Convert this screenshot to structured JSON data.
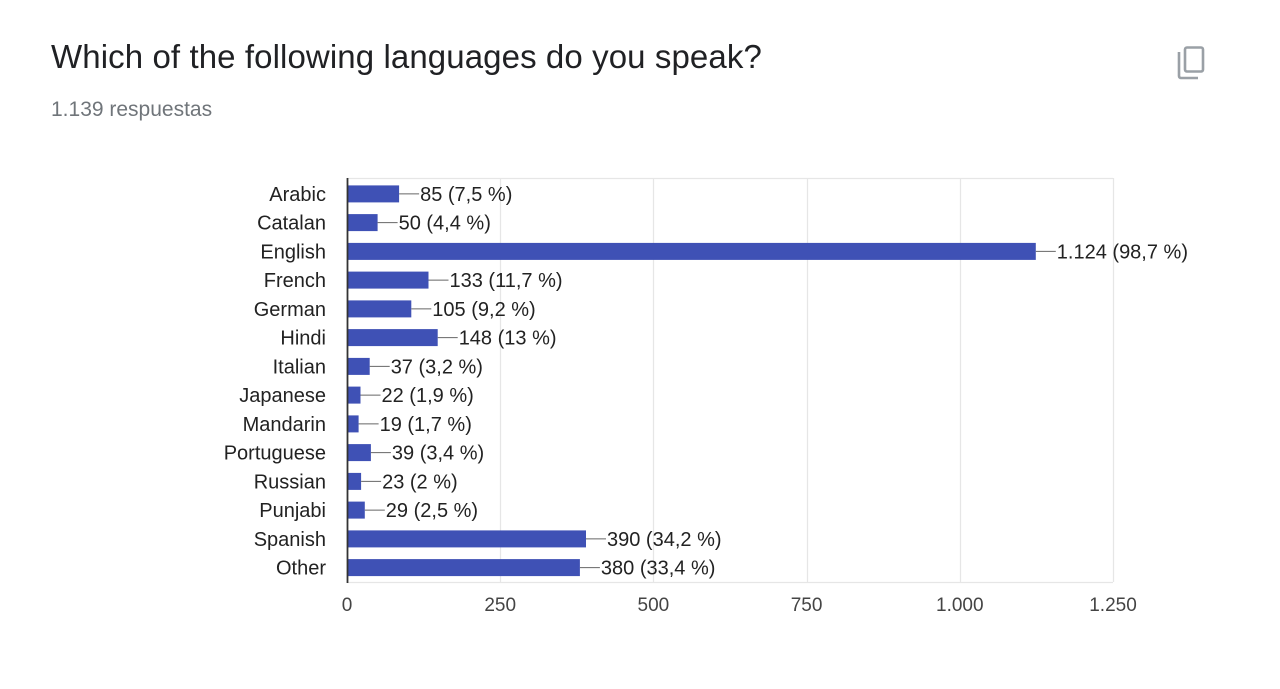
{
  "question": {
    "title": "Which of the following languages do you speak?",
    "response_count": "1.139 respuestas",
    "copy_icon": "copy-icon"
  },
  "colors": {
    "bar": "#3f51b5",
    "grid": "#e6e6e6",
    "axis": "#333333",
    "label": "#222222",
    "tick": "#444444"
  },
  "chart_data": {
    "type": "bar",
    "orientation": "horizontal",
    "categories": [
      "Arabic",
      "Catalan",
      "English",
      "French",
      "German",
      "Hindi",
      "Italian",
      "Japanese",
      "Mandarin",
      "Portuguese",
      "Russian",
      "Punjabi",
      "Spanish",
      "Other"
    ],
    "values": [
      85,
      50,
      1124,
      133,
      105,
      148,
      37,
      22,
      19,
      39,
      23,
      29,
      390,
      380
    ],
    "data_labels": [
      "85 (7,5 %)",
      "50 (4,4 %)",
      "1.124 (98,7 %)",
      "133 (11,7 %)",
      "105 (9,2 %)",
      "148 (13 %)",
      "37 (3,2 %)",
      "22 (1,9 %)",
      "19 (1,7 %)",
      "39 (3,4 %)",
      "23 (2 %)",
      "29 (2,5 %)",
      "390 (34,2 %)",
      "380 (33,4 %)"
    ],
    "xlim": [
      0,
      1250
    ],
    "x_ticks": [
      0,
      250,
      500,
      750,
      1000,
      1250
    ],
    "x_tick_labels": [
      "0",
      "250",
      "500",
      "750",
      "1.000",
      "1.250"
    ],
    "grid": true
  }
}
